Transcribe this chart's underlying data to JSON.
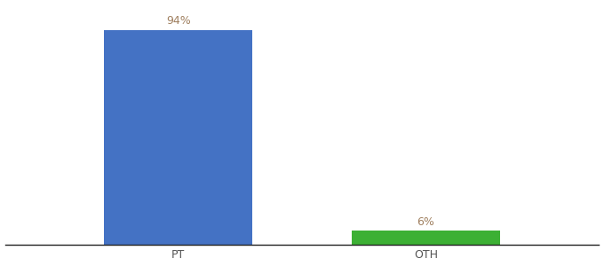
{
  "categories": [
    "PT",
    "OTH"
  ],
  "values": [
    94,
    6
  ],
  "bar_colors": [
    "#4472c4",
    "#3cb034"
  ],
  "label_color": "#a08060",
  "label_fontsize": 9,
  "tick_fontsize": 9,
  "background_color": "#ffffff",
  "ylim": [
    0,
    105
  ],
  "figsize": [
    6.8,
    3.0
  ],
  "dpi": 100,
  "x_positions": [
    1,
    2
  ],
  "bar_width": 0.6,
  "xlim": [
    0.3,
    2.7
  ]
}
